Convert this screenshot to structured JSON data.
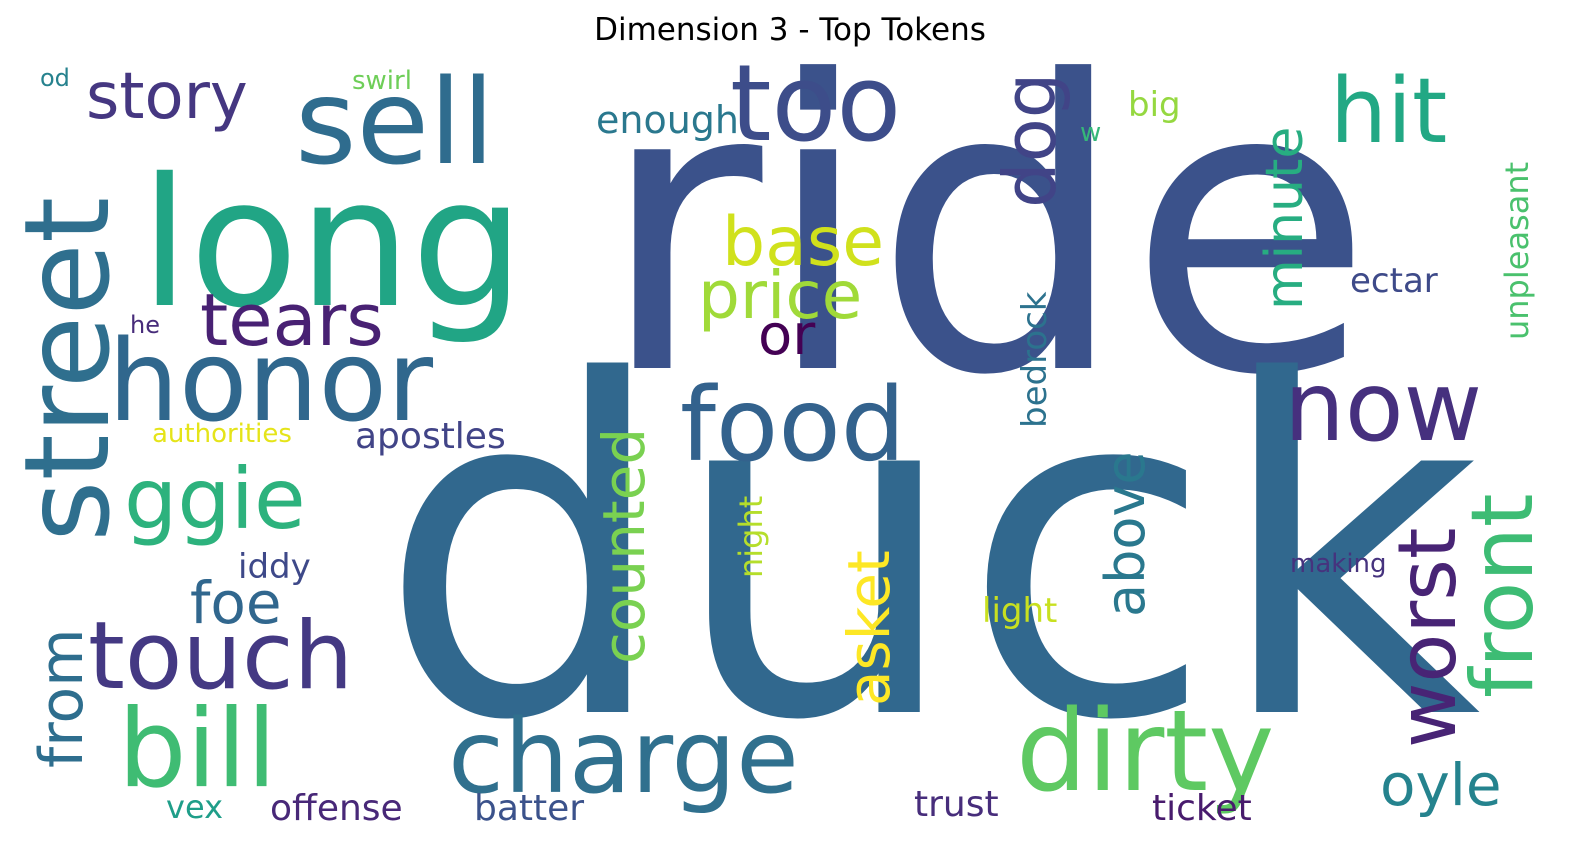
{
  "chart_data": {
    "type": "wordcloud",
    "title": "Dimension 3 - Top Tokens",
    "colormap": "viridis",
    "background": "#ffffff",
    "words": [
      {
        "text": "ride",
        "color": "#3b528b"
      },
      {
        "text": "duck",
        "color": "#31688e"
      },
      {
        "text": "long",
        "color": "#21a585"
      },
      {
        "text": "street",
        "color": "#2f6f8e"
      },
      {
        "text": "honor",
        "color": "#30678d"
      },
      {
        "text": "sell",
        "color": "#2f6c8e"
      },
      {
        "text": "too",
        "color": "#3d4d8a"
      },
      {
        "text": "charge",
        "color": "#30708e"
      },
      {
        "text": "bill",
        "color": "#3fbc73"
      },
      {
        "text": "dirty",
        "color": "#5ec962"
      },
      {
        "text": "food",
        "color": "#33628d"
      },
      {
        "text": "touch",
        "color": "#443983"
      },
      {
        "text": "now",
        "color": "#46307e"
      },
      {
        "text": "front",
        "color": "#3dbc74"
      },
      {
        "text": "hit",
        "color": "#22a884"
      },
      {
        "text": "worst",
        "color": "#482475"
      },
      {
        "text": "ggie",
        "color": "#2db27d"
      },
      {
        "text": "tears",
        "color": "#482173"
      },
      {
        "text": "story",
        "color": "#453781"
      },
      {
        "text": "dog",
        "color": "#414487"
      },
      {
        "text": "base",
        "color": "#d0e11c"
      },
      {
        "text": "price",
        "color": "#a0da39"
      },
      {
        "text": "from",
        "color": "#2e6e8e"
      },
      {
        "text": "counted",
        "color": "#7ad151"
      },
      {
        "text": "asket",
        "color": "#fde725"
      },
      {
        "text": "above",
        "color": "#2a788e"
      },
      {
        "text": "minute",
        "color": "#27ad81"
      },
      {
        "text": "oyle",
        "color": "#25838e"
      },
      {
        "text": "foe",
        "color": "#31678e"
      },
      {
        "text": "or",
        "color": "#440154"
      },
      {
        "text": "enough",
        "color": "#2a788e"
      },
      {
        "text": "apostles",
        "color": "#414487"
      },
      {
        "text": "unpleasant",
        "color": "#4ac16d"
      },
      {
        "text": "bedrock",
        "color": "#2c728e"
      },
      {
        "text": "ectar",
        "color": "#3e4a89"
      },
      {
        "text": "batter",
        "color": "#3b528b"
      },
      {
        "text": "offense",
        "color": "#482878"
      },
      {
        "text": "ticket",
        "color": "#481b6d"
      },
      {
        "text": "trust",
        "color": "#472d7b"
      },
      {
        "text": "light",
        "color": "#c8e020"
      },
      {
        "text": "iddy",
        "color": "#3e4989"
      },
      {
        "text": "night",
        "color": "#b5de2b"
      },
      {
        "text": "vex",
        "color": "#1f9e89"
      },
      {
        "text": "big",
        "color": "#95d840"
      },
      {
        "text": "authorities",
        "color": "#e5e419"
      },
      {
        "text": "making",
        "color": "#46337e"
      },
      {
        "text": "swirl",
        "color": "#6ece58"
      },
      {
        "text": "w",
        "color": "#35b779"
      },
      {
        "text": "od",
        "color": "#26828e"
      },
      {
        "text": "he",
        "color": "#472c7a"
      }
    ]
  }
}
